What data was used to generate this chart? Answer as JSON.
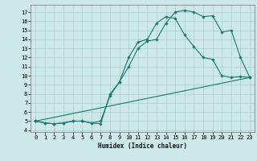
{
  "xlabel": "Humidex (Indice chaleur)",
  "bg_color": "#cce8e8",
  "line_color": "#1a7a6e",
  "grid_color": "#aacece",
  "xlim": [
    -0.5,
    23.5
  ],
  "ylim": [
    3.8,
    17.8
  ],
  "xticks": [
    0,
    1,
    2,
    3,
    4,
    5,
    6,
    7,
    8,
    9,
    10,
    11,
    12,
    13,
    14,
    15,
    16,
    17,
    18,
    19,
    20,
    21,
    22,
    23
  ],
  "yticks": [
    4,
    5,
    6,
    7,
    8,
    9,
    10,
    11,
    12,
    13,
    14,
    15,
    16,
    17
  ],
  "line1_x": [
    0,
    1,
    2,
    3,
    4,
    5,
    6,
    7,
    8,
    9,
    10,
    11,
    12,
    13,
    14,
    15,
    16,
    17,
    18,
    19,
    20,
    21,
    22,
    23
  ],
  "line1_y": [
    5.0,
    4.8,
    4.7,
    4.8,
    5.0,
    5.0,
    4.8,
    4.7,
    8.0,
    9.3,
    11.0,
    13.0,
    13.8,
    14.0,
    15.8,
    17.0,
    17.2,
    17.0,
    16.5,
    16.6,
    14.8,
    15.0,
    12.0,
    9.8
  ],
  "line2_x": [
    0,
    1,
    2,
    3,
    4,
    5,
    6,
    7,
    8,
    9,
    10,
    11,
    12,
    13,
    14,
    15,
    16,
    17,
    18,
    19,
    20,
    21,
    22,
    23
  ],
  "line2_y": [
    5.0,
    4.8,
    4.7,
    4.8,
    5.0,
    5.0,
    4.8,
    5.0,
    7.8,
    9.3,
    12.0,
    13.7,
    14.0,
    15.8,
    16.5,
    16.3,
    14.5,
    13.2,
    12.0,
    11.8,
    10.0,
    9.8,
    9.9,
    9.8
  ],
  "line3_x": [
    0,
    23
  ],
  "line3_y": [
    5.0,
    9.8
  ]
}
